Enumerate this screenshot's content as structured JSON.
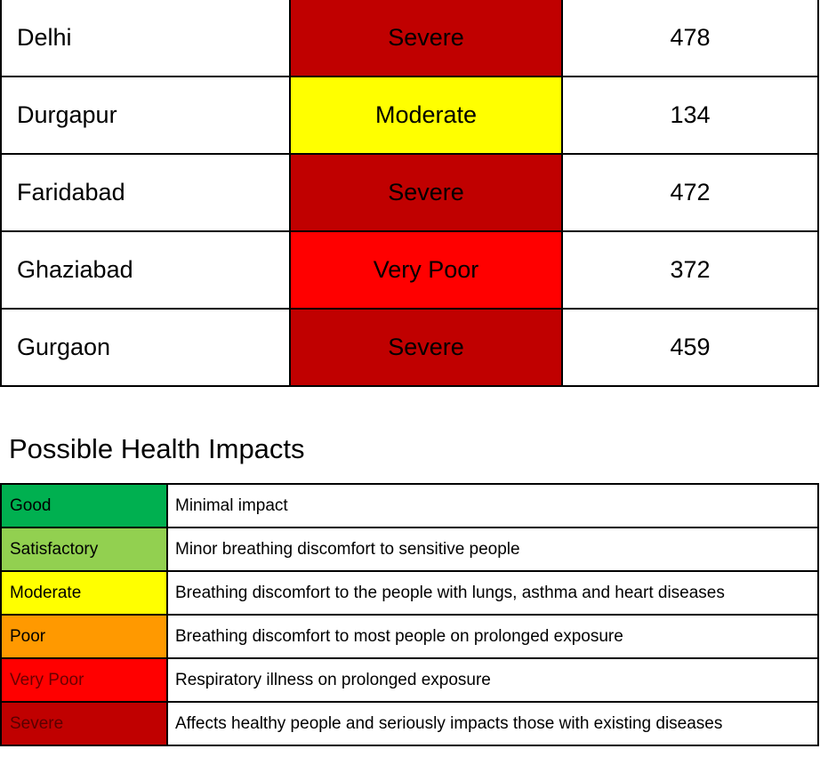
{
  "aqi_table": {
    "rows": [
      {
        "city": "Delhi",
        "category": "Severe",
        "value": "478",
        "color": "#c00000",
        "text_color": "#000000"
      },
      {
        "city": "Durgapur",
        "category": "Moderate",
        "value": "134",
        "color": "#ffff00",
        "text_color": "#000000"
      },
      {
        "city": "Faridabad",
        "category": "Severe",
        "value": "472",
        "color": "#c00000",
        "text_color": "#000000"
      },
      {
        "city": "Ghaziabad",
        "category": "Very Poor",
        "value": "372",
        "color": "#ff0000",
        "text_color": "#000000"
      },
      {
        "city": "Gurgaon",
        "category": "Severe",
        "value": "459",
        "color": "#c00000",
        "text_color": "#000000"
      }
    ]
  },
  "health_impacts": {
    "title": "Possible Health Impacts",
    "rows": [
      {
        "level": "Good",
        "description": "Minimal impact",
        "color": "#00b050",
        "text_color": "#000000"
      },
      {
        "level": "Satisfactory",
        "description": "Minor breathing discomfort to sensitive people",
        "color": "#92d050",
        "text_color": "#000000"
      },
      {
        "level": "Moderate",
        "description": "Breathing discomfort to the people with lungs, asthma and heart diseases",
        "color": "#ffff00",
        "text_color": "#000000"
      },
      {
        "level": "Poor",
        "description": "Breathing discomfort to most people on prolonged exposure",
        "color": "#ff9900",
        "text_color": "#000000"
      },
      {
        "level": "Very Poor",
        "description": "Respiratory illness on prolonged exposure",
        "color": "#ff0000",
        "text_color": "#6b0000"
      },
      {
        "level": "Severe",
        "description": "Affects healthy people and seriously impacts those with existing diseases",
        "color": "#c00000",
        "text_color": "#5a0000"
      }
    ]
  }
}
